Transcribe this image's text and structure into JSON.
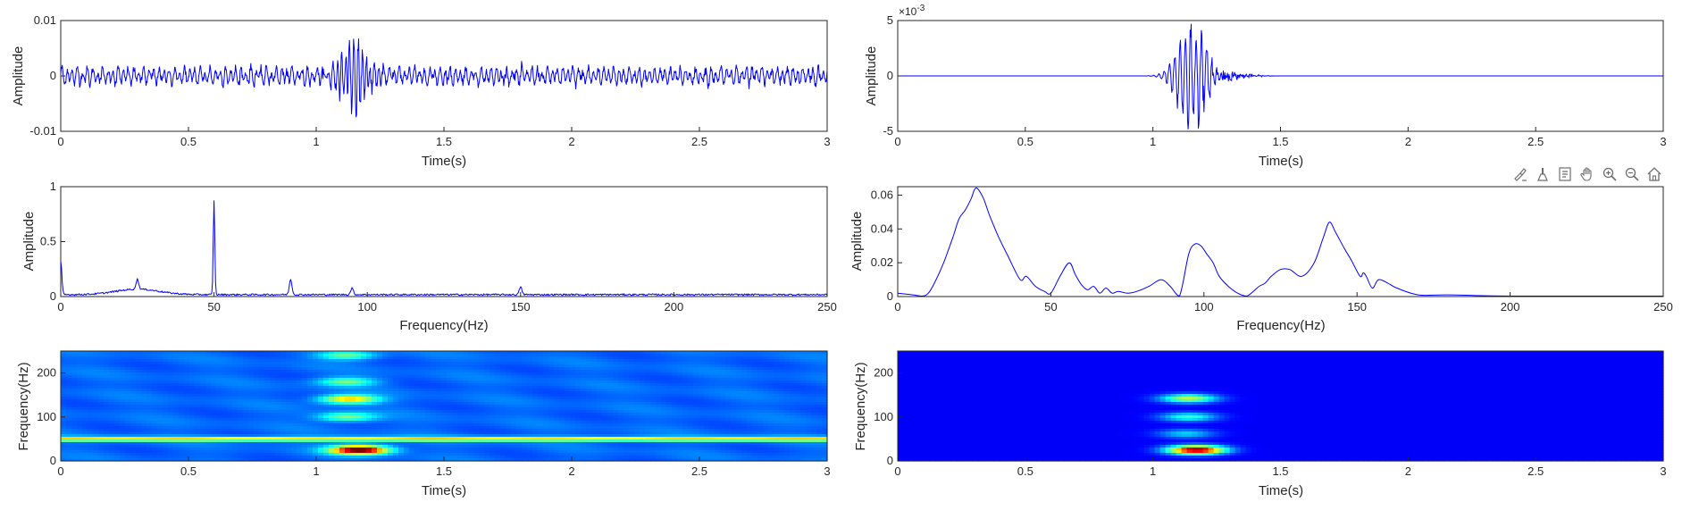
{
  "toolbar": {
    "icons": [
      "brush-icon",
      "data-cursor-icon",
      "data-tips-icon",
      "pan-icon",
      "zoom-in-icon",
      "zoom-out-icon",
      "home-icon"
    ]
  },
  "chart_data": [
    {
      "id": "raw-signal",
      "type": "line",
      "title": "",
      "xlabel": "Time(s)",
      "ylabel": "Amplitude",
      "xlim": [
        0,
        3
      ],
      "ylim": [
        -0.01,
        0.01
      ],
      "xticks": [
        "0",
        "0.5",
        "1",
        "1.5",
        "2",
        "2.5",
        "3"
      ],
      "yticks": [
        "-0.01",
        "0",
        "0.01"
      ],
      "color": "#0000ff",
      "series": [
        {
          "description": "continuous oscillation ~50 Hz with amplitude ~0.0015, plus a transient burst between ~1.0 s and ~1.35 s peaking near +0.0065 / -0.0065",
          "background_amplitude": 0.0015,
          "background_freq_hz": 50,
          "burst_start": 1.0,
          "burst_end": 1.35,
          "burst_peak": 0.0065
        }
      ]
    },
    {
      "id": "denoised-signal",
      "type": "line",
      "title": "",
      "xlabel": "Time(s)",
      "ylabel": "Amplitude",
      "xlim": [
        0,
        3
      ],
      "ylim": [
        -5,
        5
      ],
      "y_exponent_label": "×10",
      "y_exponent_power": "-3",
      "xticks": [
        "0",
        "0.5",
        "1",
        "1.5",
        "2",
        "2.5",
        "3"
      ],
      "yticks": [
        "-5",
        "0",
        "5"
      ],
      "color": "#0000ff",
      "series": [
        {
          "description": "flat near zero except a transient burst between ~0.85 s and ~1.5 s, peaks near +4.2 and -4.6 (×10^-3) around 1.12-1.18 s",
          "burst_start": 0.85,
          "burst_end": 1.5,
          "burst_peak_pos": 4.2,
          "burst_peak_neg": -4.6
        }
      ]
    },
    {
      "id": "raw-spectrum",
      "type": "line",
      "title": "",
      "xlabel": "Frequency(Hz)",
      "ylabel": "Amplitude",
      "xlim": [
        0,
        250
      ],
      "ylim": [
        0,
        1
      ],
      "xticks": [
        "0",
        "50",
        "100",
        "150",
        "200",
        "250"
      ],
      "yticks": [
        "0",
        "0.5",
        "1"
      ],
      "color": "#0000ff",
      "series": [
        {
          "peaks": [
            {
              "x": 0,
              "y": 0.3
            },
            {
              "x": 50,
              "y": 0.85
            },
            {
              "x": 75,
              "y": 0.14
            },
            {
              "x": 25,
              "y": 0.09
            },
            {
              "x": 95,
              "y": 0.06
            },
            {
              "x": 150,
              "y": 0.07
            }
          ],
          "noise_floor": 0.025
        }
      ]
    },
    {
      "id": "denoised-spectrum",
      "type": "line",
      "title": "",
      "xlabel": "Frequency(Hz)",
      "ylabel": "Amplitude",
      "xlim": [
        0,
        250
      ],
      "ylim": [
        0,
        0.065
      ],
      "xticks": [
        "0",
        "50",
        "100",
        "150",
        "200",
        "250"
      ],
      "yticks": [
        "0",
        "0.02",
        "0.04",
        "0.06"
      ],
      "color": "#0000ff",
      "series": [
        {
          "x": [
            0,
            5,
            8,
            10,
            12,
            15,
            18,
            20,
            22,
            24,
            25,
            26,
            28,
            30,
            33,
            36,
            40,
            42,
            45,
            48,
            50,
            53,
            56,
            58,
            60,
            62,
            64,
            66,
            68,
            70,
            72,
            75,
            78,
            82,
            86,
            89,
            92,
            95,
            97,
            99,
            101,
            103,
            105,
            108,
            111,
            114,
            118,
            120,
            122,
            125,
            128,
            132,
            136,
            139,
            141,
            143,
            146,
            148,
            151,
            152,
            153,
            155,
            157,
            160,
            163,
            170,
            180,
            200,
            250
          ],
          "y": [
            0.002,
            0.001,
            0.0,
            0.002,
            0.008,
            0.02,
            0.035,
            0.046,
            0.051,
            0.058,
            0.063,
            0.064,
            0.058,
            0.048,
            0.035,
            0.024,
            0.01,
            0.012,
            0.006,
            0.003,
            0.002,
            0.012,
            0.02,
            0.013,
            0.007,
            0.004,
            0.006,
            0.002,
            0.005,
            0.002,
            0.003,
            0.002,
            0.003,
            0.006,
            0.01,
            0.006,
            0.0,
            0.025,
            0.031,
            0.03,
            0.025,
            0.02,
            0.012,
            0.006,
            0.002,
            0.0,
            0.006,
            0.008,
            0.012,
            0.016,
            0.016,
            0.012,
            0.02,
            0.035,
            0.044,
            0.038,
            0.028,
            0.022,
            0.012,
            0.014,
            0.012,
            0.005,
            0.01,
            0.008,
            0.005,
            0.001,
            0.001,
            0.0,
            0.0
          ]
        }
      ]
    },
    {
      "id": "raw-spectrogram",
      "type": "heatmap",
      "title": "",
      "xlabel": "Time(s)",
      "ylabel": "Frequency(Hz)",
      "xlim": [
        0,
        3
      ],
      "ylim": [
        0,
        250
      ],
      "xticks": [
        "0",
        "0.5",
        "1",
        "1.5",
        "2",
        "2.5",
        "3"
      ],
      "yticks": [
        "0",
        "100",
        "200"
      ],
      "colormap": "jet",
      "features": [
        {
          "kind": "band",
          "freq_hz": 50,
          "intensity": 0.55,
          "t_start": 0,
          "t_end": 3
        },
        {
          "kind": "blob",
          "t": 1.17,
          "freq_hz": 25,
          "intensity": 1.0
        },
        {
          "kind": "blob",
          "t": 1.13,
          "freq_hz": 140,
          "intensity": 0.55
        },
        {
          "kind": "blob",
          "t": 1.12,
          "freq_hz": 100,
          "intensity": 0.35
        },
        {
          "kind": "blob",
          "t": 1.12,
          "freq_hz": 180,
          "intensity": 0.3
        },
        {
          "kind": "blob",
          "t": 1.12,
          "freq_hz": 240,
          "intensity": 0.3
        }
      ],
      "background_intensity": 0.12
    },
    {
      "id": "denoised-spectrogram",
      "type": "heatmap",
      "title": "",
      "xlabel": "Time(s)",
      "ylabel": "Frequency(Hz)",
      "xlim": [
        0,
        3
      ],
      "ylim": [
        0,
        250
      ],
      "xticks": [
        "0",
        "0.5",
        "1",
        "1.5",
        "2",
        "2.5",
        "3"
      ],
      "yticks": [
        "0",
        "100",
        "200"
      ],
      "colormap": "jet",
      "features": [
        {
          "kind": "blob",
          "t": 1.17,
          "freq_hz": 25,
          "intensity": 1.0
        },
        {
          "kind": "blob",
          "t": 1.14,
          "freq_hz": 142,
          "intensity": 0.5
        },
        {
          "kind": "blob",
          "t": 1.14,
          "freq_hz": 100,
          "intensity": 0.35
        },
        {
          "kind": "blob",
          "t": 1.13,
          "freq_hz": 62,
          "intensity": 0.25
        }
      ],
      "background_intensity": 0.0
    }
  ]
}
